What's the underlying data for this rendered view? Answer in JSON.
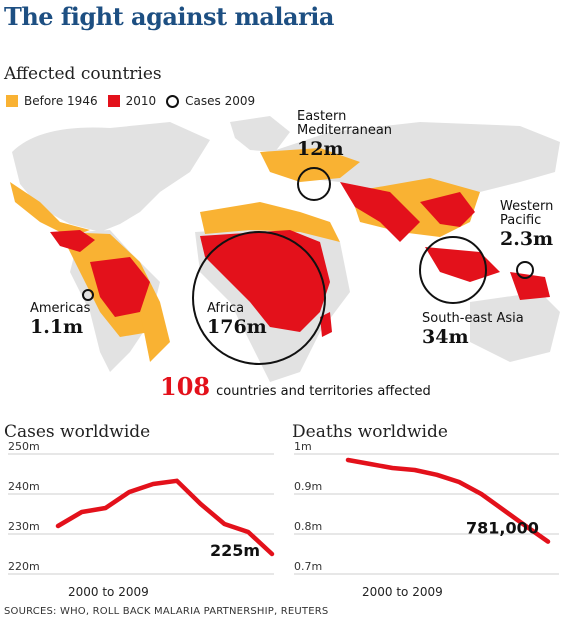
{
  "title": "The fight against malaria",
  "map": {
    "heading": "Affected countries",
    "legend": [
      {
        "label": "Before 1946",
        "color": "#f9b233"
      },
      {
        "label": "2010",
        "color": "#e3111b"
      },
      {
        "label": "Cases 2009",
        "symbol": "ring"
      }
    ],
    "regions": [
      {
        "name": "Eastern Mediterranean",
        "cases": "12m"
      },
      {
        "name": "Western Pacific",
        "cases": "2.3m"
      },
      {
        "name": "Americas",
        "cases": "1.1m"
      },
      {
        "name": "Africa",
        "cases": "176m"
      },
      {
        "name": "South-east Asia",
        "cases": "34m"
      }
    ],
    "stat_number": "108",
    "stat_label": "countries and territories affected"
  },
  "chart_data": [
    {
      "type": "line",
      "title": "Cases worldwide",
      "xlabel": "2000 to 2009",
      "ylim": [
        220,
        250
      ],
      "yticks": [
        "250m",
        "240m",
        "230m",
        "220m"
      ],
      "x": [
        2000,
        2001,
        2002,
        2003,
        2004,
        2005,
        2006,
        2007,
        2008,
        2009
      ],
      "values": [
        232,
        235.5,
        236.5,
        240.5,
        242.5,
        243.3,
        237.5,
        232.5,
        230.5,
        225
      ],
      "end_label": "225m",
      "color": "#e3111b"
    },
    {
      "type": "line",
      "title": "Deaths worldwide",
      "xlabel": "2000 to 2009",
      "ylim": [
        0.7,
        1.0
      ],
      "yticks": [
        "1m",
        "0.9m",
        "0.8m",
        "0.7m"
      ],
      "x": [
        2000,
        2001,
        2002,
        2003,
        2004,
        2005,
        2006,
        2007,
        2008,
        2009
      ],
      "values": [
        0.985,
        0.975,
        0.965,
        0.96,
        0.948,
        0.93,
        0.9,
        0.86,
        0.82,
        0.781
      ],
      "end_label": "781,000",
      "color": "#e3111b"
    }
  ],
  "sources": "SOURCES: WHO, ROLL BACK MALARIA PARTNERSHIP, REUTERS"
}
